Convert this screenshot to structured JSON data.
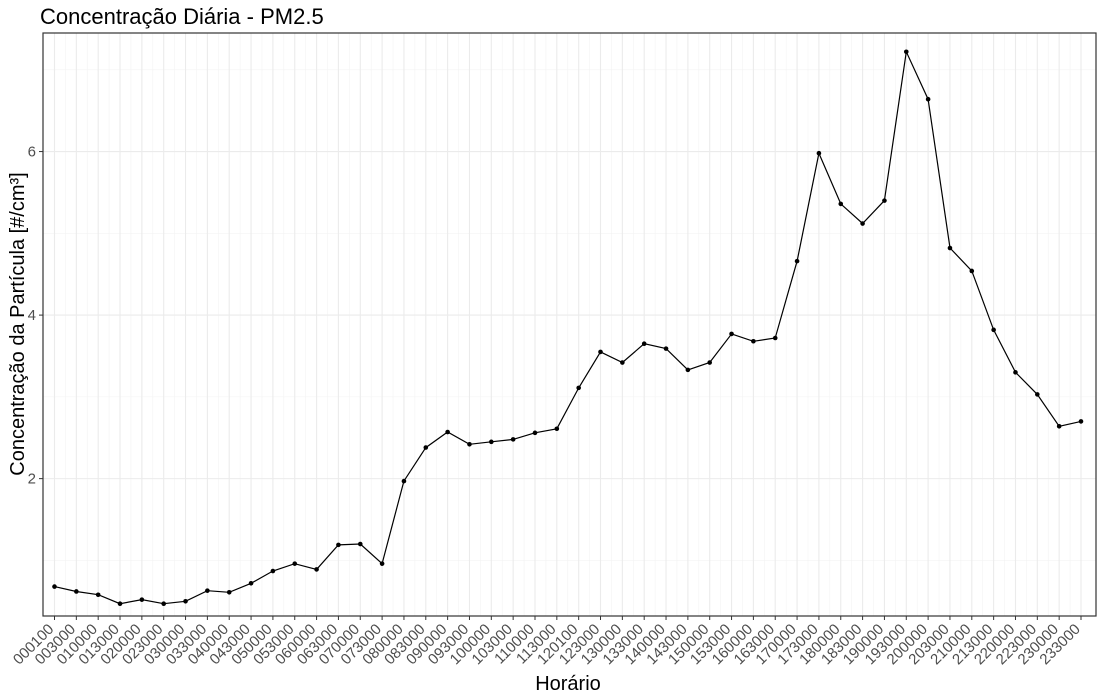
{
  "chart_data": {
    "type": "line",
    "title": "Concentração Diária - PM2.5",
    "xlabel": "Horário",
    "ylabel": "Concentração da Partícula [#/cm³]",
    "categories": [
      "000100",
      "003000",
      "010000",
      "013000",
      "020000",
      "023000",
      "030000",
      "033000",
      "040000",
      "043000",
      "050000",
      "053000",
      "060000",
      "063000",
      "070000",
      "073000",
      "080000",
      "083000",
      "090000",
      "093000",
      "100000",
      "103000",
      "110000",
      "113000",
      "120100",
      "123000",
      "130000",
      "133000",
      "140000",
      "143000",
      "150000",
      "153000",
      "160000",
      "163000",
      "170000",
      "173000",
      "180000",
      "183000",
      "190000",
      "193000",
      "200000",
      "203000",
      "210000",
      "213000",
      "220000",
      "223000",
      "230000",
      "233000"
    ],
    "series": [
      {
        "values": [
          0.68,
          0.62,
          0.58,
          0.47,
          0.52,
          0.47,
          0.5,
          0.63,
          0.61,
          0.72,
          0.87,
          0.96,
          0.89,
          1.19,
          1.2,
          0.96,
          1.97,
          2.38,
          2.57,
          2.42,
          2.45,
          2.48,
          2.56,
          2.61,
          3.11,
          3.55,
          3.42,
          3.65,
          3.59,
          3.33,
          3.42,
          3.77,
          3.68,
          3.72,
          4.66,
          5.98,
          5.36,
          5.12,
          5.4,
          7.22,
          6.64,
          4.82,
          4.54,
          3.82,
          3.3,
          3.03,
          2.64,
          2.7
        ]
      }
    ],
    "yticks": [
      "2",
      "4",
      "6"
    ],
    "ylim": [
      0.32,
      7.45
    ],
    "grid": true,
    "legend": "none"
  }
}
